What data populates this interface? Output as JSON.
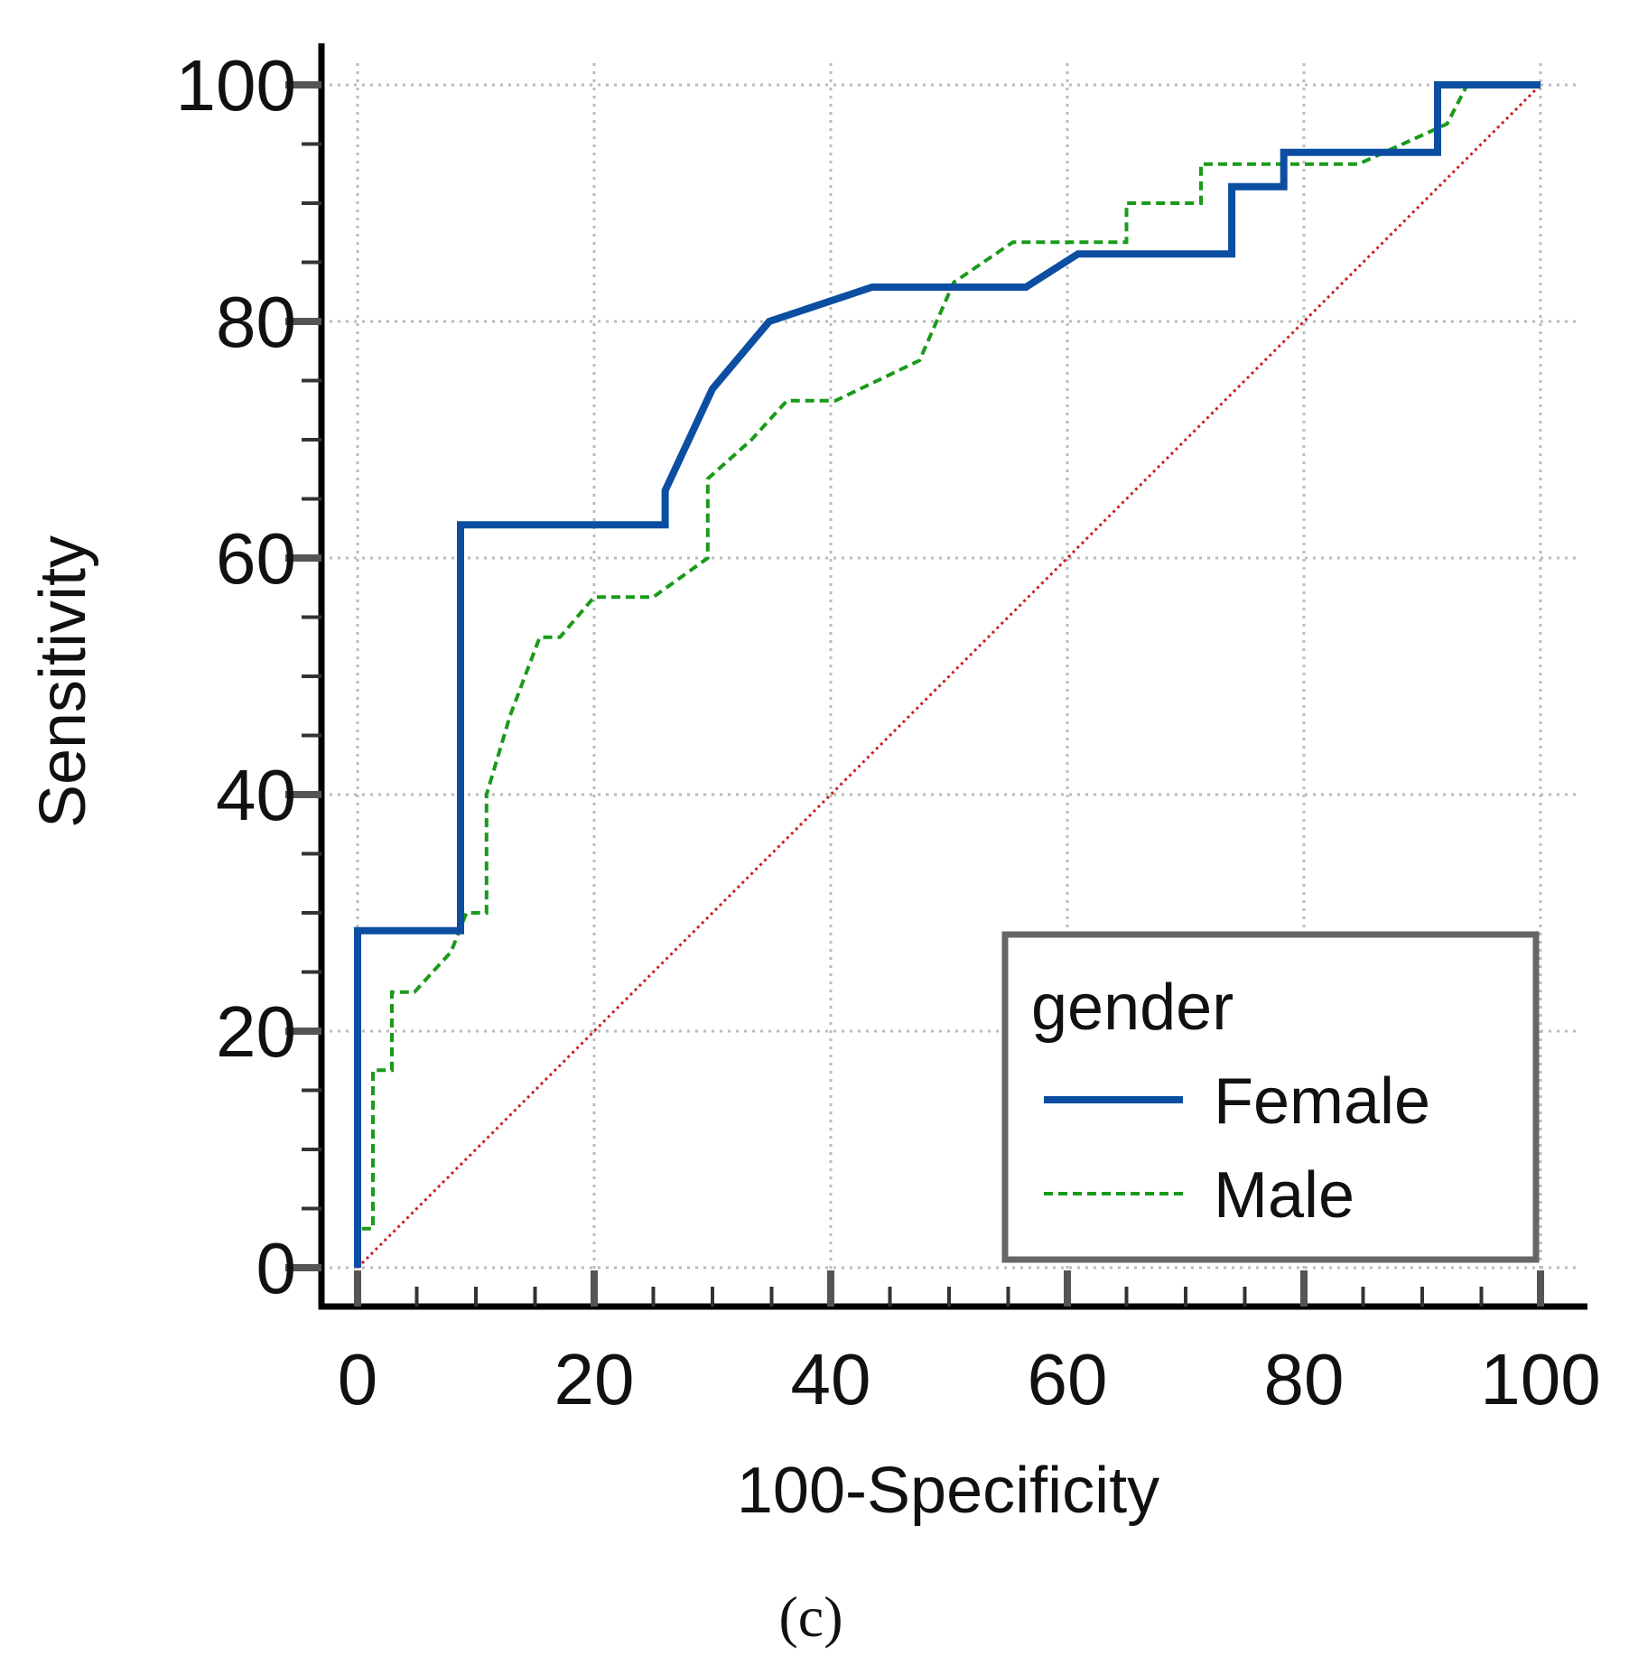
{
  "chart_data": {
    "type": "line",
    "xlabel": "100-Specificity",
    "ylabel": "Sensitivity",
    "xlim": [
      0,
      100
    ],
    "ylim": [
      0,
      100
    ],
    "x_ticks": [
      "0",
      "20",
      "40",
      "60",
      "80",
      "100"
    ],
    "y_ticks": [
      "0",
      "20",
      "40",
      "60",
      "80",
      "100"
    ],
    "grid": true,
    "caption": "(c)",
    "legend": {
      "title": "gender",
      "placement": "bottom-right"
    },
    "series": [
      {
        "name": "Female",
        "color": "#0b4ea2",
        "style": "solid",
        "points": [
          [
            0,
            0
          ],
          [
            0,
            28.5
          ],
          [
            8.7,
            28.5
          ],
          [
            8.7,
            62.8
          ],
          [
            26,
            62.8
          ],
          [
            26,
            65.7
          ],
          [
            30,
            74.3
          ],
          [
            34.8,
            80
          ],
          [
            43.5,
            82.9
          ],
          [
            56.5,
            82.9
          ],
          [
            60.9,
            85.7
          ],
          [
            73.9,
            85.7
          ],
          [
            73.9,
            91.4
          ],
          [
            78.3,
            91.4
          ],
          [
            78.3,
            94.3
          ],
          [
            91.3,
            94.3
          ],
          [
            91.3,
            100
          ],
          [
            100,
            100
          ]
        ]
      },
      {
        "name": "Male",
        "color": "#1a9a1a",
        "style": "dashed",
        "points": [
          [
            0,
            0
          ],
          [
            0,
            3.3
          ],
          [
            1.3,
            3.3
          ],
          [
            1.3,
            16.7
          ],
          [
            2.9,
            16.7
          ],
          [
            2.9,
            23.3
          ],
          [
            4.8,
            23.3
          ],
          [
            7.9,
            26.7
          ],
          [
            9.2,
            30
          ],
          [
            10.9,
            30
          ],
          [
            10.9,
            40
          ],
          [
            12.9,
            46.7
          ],
          [
            15.4,
            53.3
          ],
          [
            17.1,
            53.3
          ],
          [
            20,
            56.7
          ],
          [
            25,
            56.7
          ],
          [
            29.6,
            60
          ],
          [
            29.6,
            66.7
          ],
          [
            33.3,
            70
          ],
          [
            36.3,
            73.3
          ],
          [
            40.4,
            73.3
          ],
          [
            47.5,
            76.7
          ],
          [
            50.4,
            83.3
          ],
          [
            55.4,
            86.7
          ],
          [
            65,
            86.7
          ],
          [
            65,
            90
          ],
          [
            71.3,
            90
          ],
          [
            71.3,
            93.3
          ],
          [
            84.6,
            93.3
          ],
          [
            92.1,
            96.7
          ],
          [
            93.8,
            100
          ],
          [
            100,
            100
          ]
        ]
      },
      {
        "name": "",
        "color": "#cc2222",
        "style": "dotted",
        "points": [
          [
            0,
            0
          ],
          [
            100,
            100
          ]
        ]
      }
    ]
  }
}
